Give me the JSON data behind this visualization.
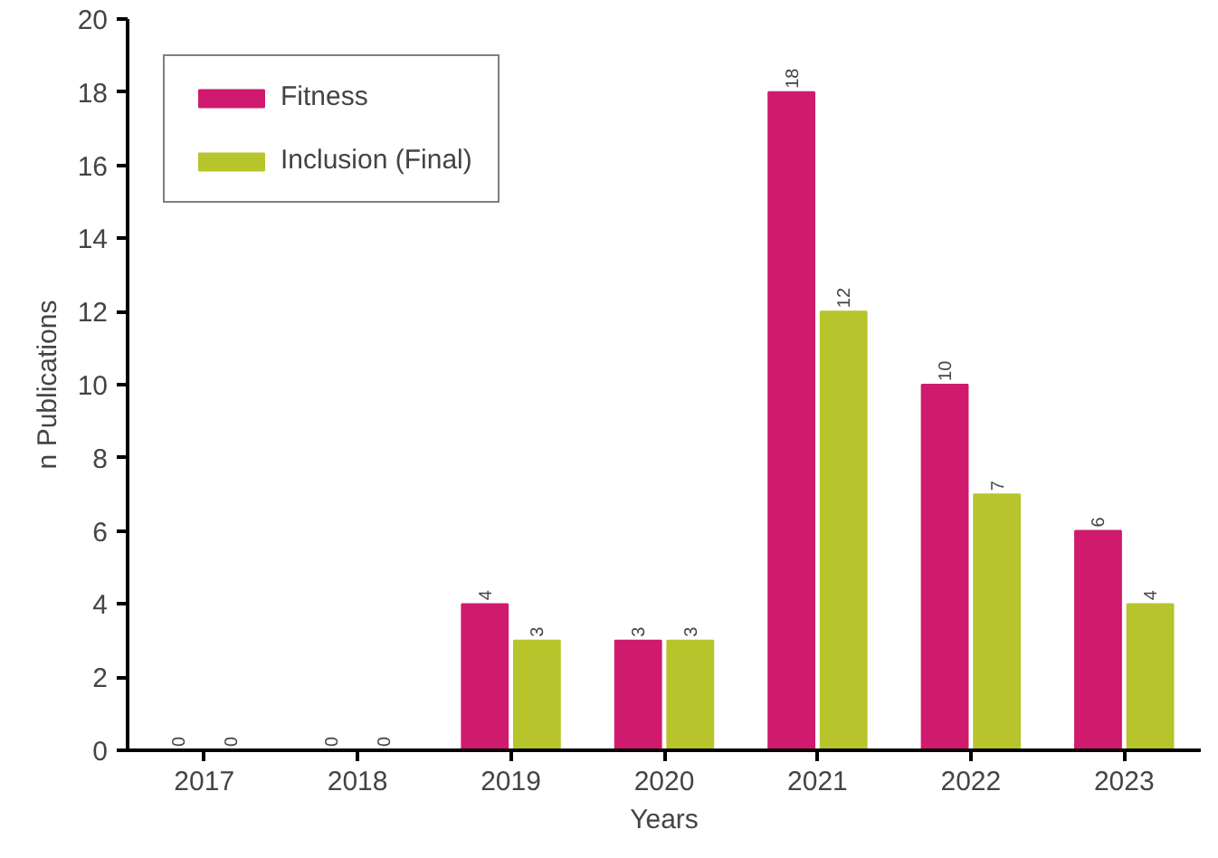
{
  "chart_data": {
    "type": "bar",
    "xlabel": "Years",
    "ylabel": "n Publications",
    "categories": [
      "2017",
      "2018",
      "2019",
      "2020",
      "2021",
      "2022",
      "2023"
    ],
    "series": [
      {
        "name": "Fitness",
        "color": "#d01a6e",
        "values": [
          0,
          0,
          4,
          3,
          18,
          10,
          6
        ]
      },
      {
        "name": "Inclusion (Final)",
        "color": "#b7c42c",
        "values": [
          0,
          0,
          3,
          3,
          12,
          7,
          4
        ]
      }
    ],
    "ylim": [
      0,
      20
    ],
    "yticks": [
      0,
      2,
      4,
      6,
      8,
      10,
      12,
      14,
      16,
      18,
      20
    ],
    "grid": false,
    "legend": "top left",
    "data_labels": true
  }
}
